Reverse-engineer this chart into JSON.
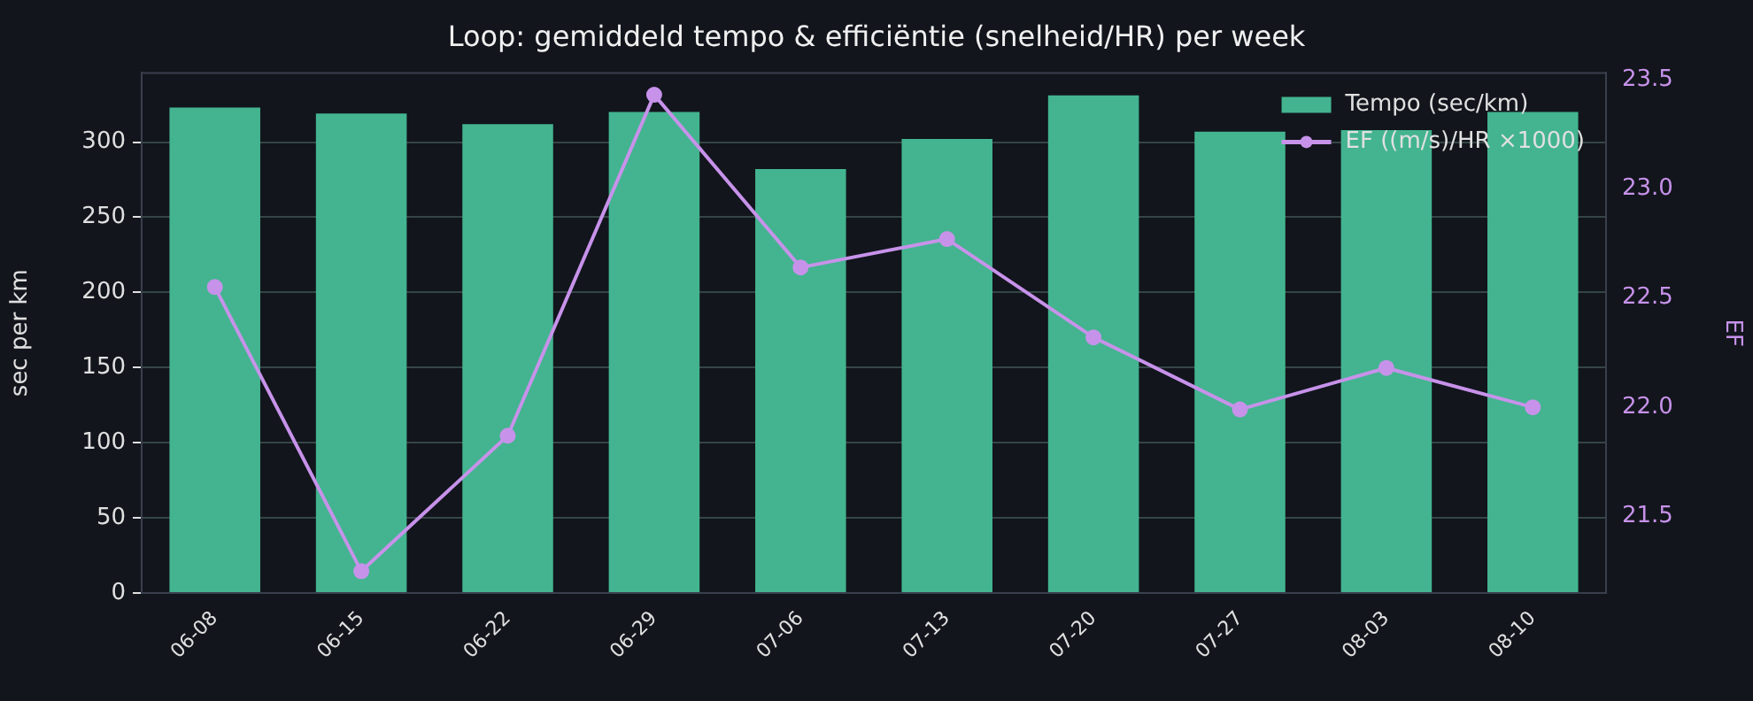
{
  "chart_data": {
    "type": "bar",
    "title": "Loop: gemiddeld tempo & efficiëntie (snelheid/HR) per week",
    "categories": [
      "06-08",
      "06-15",
      "06-22",
      "06-29",
      "07-06",
      "07-13",
      "07-20",
      "07-27",
      "08-03",
      "08-10"
    ],
    "series": [
      {
        "name": "Tempo (sec/km)",
        "color": "#43b48f",
        "values": [
          323,
          319,
          312,
          320,
          282,
          302,
          331,
          307,
          308,
          320
        ]
      },
      {
        "name": "EF ((m/s)/HR ×1000)",
        "type": "line",
        "axis": "y2",
        "color": "#c792ea",
        "values": [
          22.55,
          21.25,
          21.87,
          23.43,
          22.64,
          22.77,
          22.32,
          21.99,
          22.18,
          22.0
        ]
      }
    ],
    "ylabel": "sec per km",
    "y2label": "EF",
    "ylim": [
      0,
      346
    ],
    "yticks": [
      0,
      50,
      100,
      150,
      200,
      250,
      300
    ],
    "y2lim": [
      21.15,
      23.53
    ],
    "y2ticks": [
      {
        "value": 21.5,
        "label": "21.5"
      },
      {
        "value": 22,
        "label": "22.0"
      },
      {
        "value": 22.5,
        "label": "22.5"
      },
      {
        "value": 23,
        "label": "23.0"
      },
      {
        "value": 23.5,
        "label": "23.5"
      }
    ],
    "grid": "y",
    "legend": "top right",
    "marker": "circle",
    "line_style": "solid"
  }
}
